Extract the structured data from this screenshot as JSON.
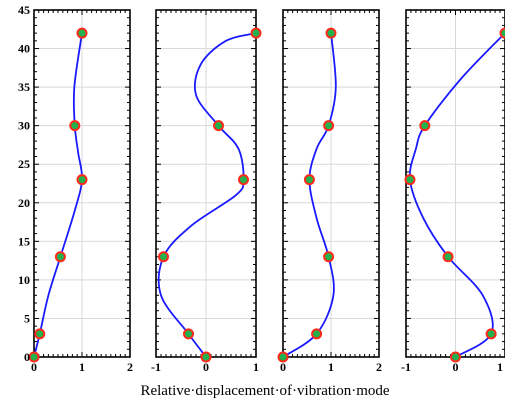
{
  "chart_data": [
    {
      "type": "line",
      "title": "",
      "xlabel": "Relative·displacement·of·vibration·mode",
      "ylabel": "",
      "xlim": [
        0,
        2
      ],
      "ylim": [
        0,
        45
      ],
      "xticks": [
        "0",
        "1",
        "2"
      ],
      "yticks": [
        "0",
        "5",
        "10",
        "15",
        "20",
        "25",
        "30",
        "35",
        "40",
        "45"
      ],
      "grid": true,
      "marker_points": {
        "x": [
          0,
          0.12,
          0.55,
          1.0,
          0.85,
          1.0
        ],
        "y": [
          0,
          3,
          13,
          23,
          30,
          42
        ]
      },
      "series": [
        {
          "values": [
            [
              0,
              0
            ],
            [
              0.12,
              3
            ],
            [
              0.3,
              8
            ],
            [
              0.55,
              13
            ],
            [
              0.85,
              19
            ],
            [
              1.0,
              23
            ],
            [
              0.92,
              26.5
            ],
            [
              0.85,
              30
            ],
            [
              0.84,
              35
            ],
            [
              1.0,
              42
            ]
          ]
        }
      ],
      "colors": {
        "line": "#1a1aff",
        "marker_fill": "#22b14c",
        "marker_edge": "#ff2a1a"
      }
    },
    {
      "type": "line",
      "title": "",
      "xlabel": "",
      "ylabel": "",
      "xlim": [
        -1,
        1
      ],
      "ylim": [
        0,
        45
      ],
      "xticks": [
        "-1",
        "0",
        "1"
      ],
      "yticks": [],
      "grid": true,
      "marker_points": {
        "x": [
          0,
          -0.35,
          -0.85,
          0.75,
          0.25,
          1.0
        ],
        "y": [
          0,
          3,
          13,
          23,
          30,
          42
        ]
      },
      "series": [
        {
          "values": [
            [
              0,
              0
            ],
            [
              -0.35,
              3
            ],
            [
              -0.9,
              8
            ],
            [
              -0.85,
              13
            ],
            [
              -0.3,
              17
            ],
            [
              0.6,
              21
            ],
            [
              0.75,
              23
            ],
            [
              0.65,
              27
            ],
            [
              0.25,
              30
            ],
            [
              -0.2,
              34
            ],
            [
              -0.1,
              38
            ],
            [
              0.4,
              41
            ],
            [
              1.0,
              42
            ]
          ]
        }
      ],
      "colors": {
        "line": "#1a1aff",
        "marker_fill": "#22b14c",
        "marker_edge": "#ff2a1a"
      }
    },
    {
      "type": "line",
      "title": "",
      "xlabel": "",
      "ylabel": "",
      "xlim": [
        0,
        2
      ],
      "ylim": [
        0,
        45
      ],
      "xticks": [
        "0",
        "1",
        "2"
      ],
      "yticks": [],
      "grid": true,
      "marker_points": {
        "x": [
          0,
          0.7,
          0.95,
          0.55,
          0.95,
          1.0
        ],
        "y": [
          0,
          3,
          13,
          23,
          30,
          42
        ]
      },
      "series": [
        {
          "values": [
            [
              0,
              0
            ],
            [
              0.7,
              3
            ],
            [
              1.05,
              8
            ],
            [
              0.95,
              13
            ],
            [
              0.7,
              18
            ],
            [
              0.55,
              23
            ],
            [
              0.7,
              27
            ],
            [
              0.95,
              30
            ],
            [
              1.1,
              35
            ],
            [
              1.0,
              42
            ]
          ]
        }
      ],
      "colors": {
        "line": "#1a1aff",
        "marker_fill": "#22b14c",
        "marker_edge": "#ff2a1a"
      }
    },
    {
      "type": "line",
      "title": "",
      "xlabel": "",
      "ylabel": "",
      "xlim": [
        -1,
        1
      ],
      "ylim": [
        0,
        45
      ],
      "xticks": [
        "-1",
        "0",
        "1"
      ],
      "yticks": [],
      "grid": true,
      "marker_points": {
        "x": [
          0,
          0.72,
          -0.15,
          -0.92,
          -0.62,
          1.0
        ],
        "y": [
          0,
          3,
          13,
          23,
          30,
          42
        ]
      },
      "series": [
        {
          "values": [
            [
              0,
              0
            ],
            [
              0.72,
              3
            ],
            [
              0.55,
              8
            ],
            [
              -0.15,
              13
            ],
            [
              -0.65,
              18
            ],
            [
              -0.92,
              23
            ],
            [
              -0.8,
              27
            ],
            [
              -0.62,
              30
            ],
            [
              0.1,
              36
            ],
            [
              1.0,
              42
            ]
          ]
        }
      ],
      "colors": {
        "line": "#1a1aff",
        "marker_fill": "#22b14c",
        "marker_edge": "#ff2a1a"
      }
    }
  ]
}
